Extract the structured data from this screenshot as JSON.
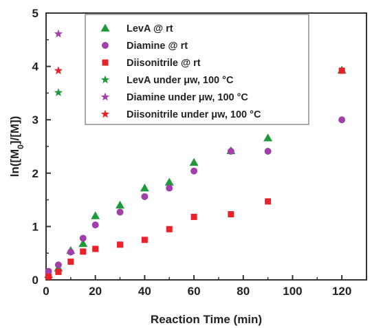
{
  "chart_data": {
    "type": "scatter",
    "xlabel": "Reaction Time (min)",
    "ylabel": "ln([M0]/[M])",
    "ylabel_parts": {
      "pre": "ln([M",
      "sub": "0",
      "post": "]/[M])"
    },
    "xlim": [
      0,
      130
    ],
    "ylim": [
      0,
      5
    ],
    "x_ticks": [
      0,
      20,
      40,
      60,
      80,
      100,
      120
    ],
    "y_ticks": [
      0,
      1,
      2,
      3,
      4,
      5
    ],
    "legend_position": "top-center (inside plot)",
    "grid": false,
    "series": [
      {
        "name": "LevA @ rt",
        "marker": "triangle",
        "color": "#1f9a3a",
        "points": [
          [
            1,
            0.1
          ],
          [
            5,
            0.22
          ],
          [
            10,
            0.55
          ],
          [
            15,
            0.68
          ],
          [
            20,
            1.2
          ],
          [
            30,
            1.4
          ],
          [
            40,
            1.72
          ],
          [
            50,
            1.83
          ],
          [
            60,
            2.2
          ],
          [
            75,
            2.42
          ],
          [
            90,
            2.66
          ],
          [
            120,
            3.93
          ]
        ]
      },
      {
        "name": "Diamine @ rt",
        "marker": "circle",
        "color": "#a040a8",
        "points": [
          [
            1,
            0.16
          ],
          [
            5,
            0.28
          ],
          [
            10,
            0.52
          ],
          [
            15,
            0.78
          ],
          [
            20,
            1.03
          ],
          [
            30,
            1.27
          ],
          [
            40,
            1.56
          ],
          [
            50,
            1.72
          ],
          [
            60,
            2.04
          ],
          [
            75,
            2.41
          ],
          [
            90,
            2.41
          ],
          [
            120,
            3.0
          ]
        ]
      },
      {
        "name": "Diisonitrile @ rt",
        "marker": "square",
        "color": "#e8212a",
        "points": [
          [
            1,
            0.06
          ],
          [
            5,
            0.15
          ],
          [
            10,
            0.34
          ],
          [
            15,
            0.53
          ],
          [
            20,
            0.58
          ],
          [
            30,
            0.66
          ],
          [
            40,
            0.75
          ],
          [
            50,
            0.95
          ],
          [
            60,
            1.18
          ],
          [
            75,
            1.23
          ],
          [
            90,
            1.47
          ],
          [
            120,
            3.92
          ]
        ]
      },
      {
        "name": "LevA under μw, 100 °C",
        "marker": "star",
        "color": "#1f9a3a",
        "points": [
          [
            5,
            3.51
          ]
        ]
      },
      {
        "name": "Diamine under μw, 100 °C",
        "marker": "star",
        "color": "#a040a8",
        "points": [
          [
            5,
            4.61
          ]
        ]
      },
      {
        "name": "Diisonitrile under μw, 100 °C",
        "marker": "star",
        "color": "#e8212a",
        "points": [
          [
            5,
            3.92
          ]
        ]
      }
    ]
  }
}
